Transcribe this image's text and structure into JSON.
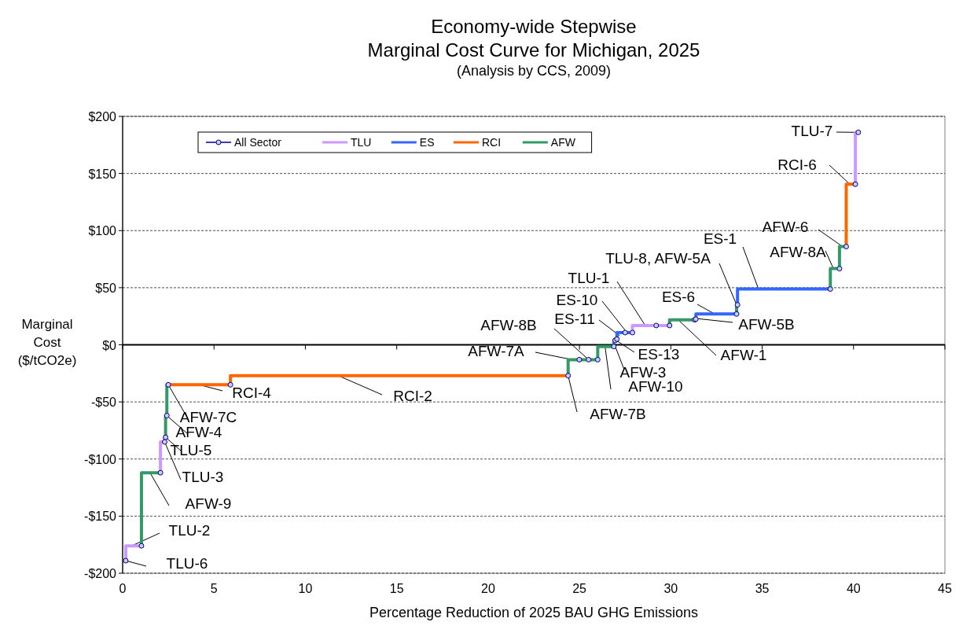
{
  "chart_data": {
    "type": "step",
    "title": "Economy-wide Stepwise\nMarginal Cost Curve for Michigan, 2025",
    "subtitle": "(Analysis by CCS, 2009)",
    "xlabel": "Percentage Reduction of 2025 BAU GHG Emissions",
    "ylabel": "Marginal Cost ($/tCO2e)",
    "xlim": [
      0,
      45
    ],
    "xticks": [
      0,
      5,
      10,
      15,
      20,
      25,
      30,
      35,
      40,
      45
    ],
    "ylim": [
      -200,
      200
    ],
    "yticks": [
      {
        "value": -200,
        "label": "-$200"
      },
      {
        "value": -150,
        "label": "-$150"
      },
      {
        "value": -100,
        "label": "-$100"
      },
      {
        "value": -50,
        "label": "-$50"
      },
      {
        "value": 0,
        "label": "$0"
      },
      {
        "value": 50,
        "label": "$50"
      },
      {
        "value": 100,
        "label": "$100"
      },
      {
        "value": 150,
        "label": "$150"
      },
      {
        "value": 200,
        "label": "$200"
      }
    ],
    "grid": "y",
    "legend": "top left",
    "line_style": "solid",
    "series": [
      {
        "name": "All Sector",
        "type": "scatter",
        "marker": "circle",
        "color": "#000080",
        "x": [
          0.17,
          1.03,
          2.07,
          2.3,
          2.35,
          2.42,
          2.5,
          5.9,
          24.38,
          24.99,
          25.5,
          26.0,
          26.88,
          26.95,
          27.05,
          27.5,
          27.9,
          29.2,
          29.93,
          31.3,
          31.37,
          33.6,
          33.65,
          38.73,
          39.23,
          39.6,
          40.1,
          40.26
        ],
        "values": [
          -189,
          -176,
          -112,
          -85,
          -81,
          -62,
          -35,
          -35,
          -27,
          -13,
          -13,
          -13,
          -1.5,
          3.8,
          5,
          10.7,
          10.7,
          16.9,
          16.9,
          21.9,
          22.5,
          27,
          35,
          48.8,
          66.7,
          86,
          140.6,
          186
        ]
      },
      {
        "name": "TLU",
        "color": "#cc99ff",
        "x": [
          0.17,
          1.03,
          null,
          2.07,
          2.3,
          2.35,
          null,
          27.9,
          29.2,
          29.93,
          null,
          40.1,
          40.26
        ],
        "values": [
          -189,
          -176,
          null,
          -112,
          -85,
          -81,
          null,
          10.7,
          16.9,
          16.9,
          null,
          140.6,
          186
        ]
      },
      {
        "name": "ES",
        "color": "#3366ff",
        "x": [
          26.95,
          27.05,
          27.5,
          27.9,
          null,
          31.37,
          33.6,
          null,
          33.65,
          38.73
        ],
        "values": [
          3.8,
          5,
          10.7,
          10.7,
          null,
          22.5,
          27,
          null,
          35,
          48.8
        ]
      },
      {
        "name": "RCI",
        "color": "#ff6600",
        "x": [
          2.5,
          5.9,
          24.38,
          null,
          39.6,
          40.1
        ],
        "values": [
          -35,
          -35,
          -27,
          null,
          86,
          140.6
        ]
      },
      {
        "name": "AFW",
        "color": "#339966",
        "x": [
          1.03,
          2.07,
          null,
          2.35,
          2.42,
          2.5,
          null,
          24.38,
          24.99,
          25.5,
          26.0,
          26.88,
          26.95,
          null,
          29.93,
          31.3,
          31.37,
          null,
          33.6,
          33.65,
          null,
          38.73,
          39.23,
          39.6
        ],
        "values": [
          -176,
          -112,
          null,
          -81,
          -62,
          -35,
          null,
          -27,
          -13,
          -13,
          -13,
          -1.5,
          3.8,
          null,
          16.9,
          21.9,
          22.5,
          null,
          27,
          35,
          null,
          48.8,
          66.7,
          86
        ]
      }
    ],
    "annotations": [
      {
        "text": "TLU-6",
        "x": 0.17,
        "y": -189
      },
      {
        "text": "TLU-2",
        "x": 0.5,
        "y": -176
      },
      {
        "text": "AFW-9",
        "x": 1.5,
        "y": -112
      },
      {
        "text": "TLU-3",
        "x": 2.3,
        "y": -85
      },
      {
        "text": "TLU-5",
        "x": 2.35,
        "y": -81
      },
      {
        "text": "AFW-4",
        "x": 2.42,
        "y": -62
      },
      {
        "text": "AFW-7C",
        "x": 2.5,
        "y": -35
      },
      {
        "text": "RCI-4",
        "x": 4.2,
        "y": -35
      },
      {
        "text": "RCI-2",
        "x": 11.8,
        "y": -27
      },
      {
        "text": "AFW-7B",
        "x": 24.38,
        "y": -27
      },
      {
        "text": "AFW-7A",
        "x": 24.6,
        "y": -13
      },
      {
        "text": "AFW-8B",
        "x": 25.5,
        "y": -13
      },
      {
        "text": "AFW-10",
        "x": 26.4,
        "y": -1.5
      },
      {
        "text": "AFW-3",
        "x": 26.9,
        "y": 1
      },
      {
        "text": "ES-13",
        "x": 27.0,
        "y": 4
      },
      {
        "text": "ES-11",
        "x": 27.2,
        "y": 8
      },
      {
        "text": "ES-10",
        "x": 27.6,
        "y": 10.7
      },
      {
        "text": "TLU-1",
        "x": 28.6,
        "y": 16.9
      },
      {
        "text": "TLU-8, AFW-5A",
        "x": 33.6,
        "y": 35
      },
      {
        "text": "AFW-1",
        "x": 30.4,
        "y": 21.9
      },
      {
        "text": "AFW-5B",
        "x": 31.4,
        "y": 23
      },
      {
        "text": "ES-6",
        "x": 32.4,
        "y": 27
      },
      {
        "text": "ES-1",
        "x": 34.8,
        "y": 48.8
      },
      {
        "text": "AFW-8A",
        "x": 38.9,
        "y": 66.7
      },
      {
        "text": "AFW-6",
        "x": 39.4,
        "y": 86
      },
      {
        "text": "RCI-6",
        "x": 39.8,
        "y": 140.6
      },
      {
        "text": "TLU-7",
        "x": 40.2,
        "y": 186
      }
    ]
  }
}
